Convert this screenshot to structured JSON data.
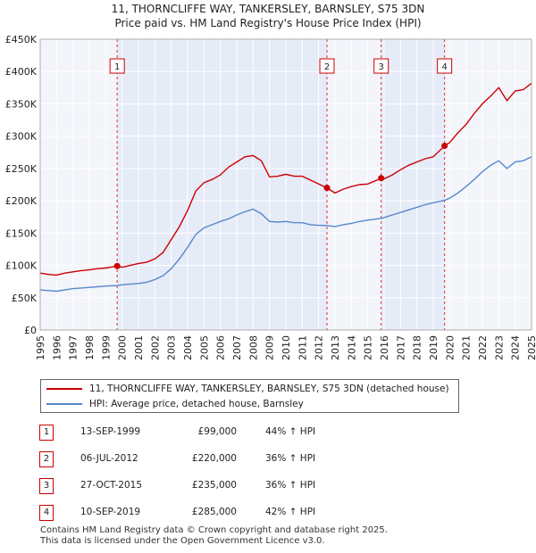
{
  "chart_data": {
    "type": "line",
    "title": "11, THORNCLIFFE WAY, TANKERSLEY, BARNSLEY, S75 3DN",
    "subtitle": "Price paid vs. HM Land Registry's House Price Index (HPI)",
    "xlabel": "",
    "ylabel": "",
    "xlim": [
      1995,
      2025
    ],
    "ylim": [
      0,
      450000
    ],
    "x_ticks": [
      "1995",
      "1996",
      "1997",
      "1998",
      "1999",
      "2000",
      "2001",
      "2002",
      "2003",
      "2004",
      "2005",
      "2006",
      "2007",
      "2008",
      "2009",
      "2010",
      "2011",
      "2012",
      "2013",
      "2014",
      "2015",
      "2016",
      "2017",
      "2018",
      "2019",
      "2020",
      "2021",
      "2022",
      "2023",
      "2024",
      "2025"
    ],
    "y_ticks": [
      {
        "value": 0,
        "label": "£0"
      },
      {
        "value": 50000,
        "label": "£50K"
      },
      {
        "value": 100000,
        "label": "£100K"
      },
      {
        "value": 150000,
        "label": "£150K"
      },
      {
        "value": 200000,
        "label": "£200K"
      },
      {
        "value": 250000,
        "label": "£250K"
      },
      {
        "value": 300000,
        "label": "£300K"
      },
      {
        "value": 350000,
        "label": "£350K"
      },
      {
        "value": 400000,
        "label": "£400K"
      },
      {
        "value": 450000,
        "label": "£450K"
      }
    ],
    "series": [
      {
        "name": "11, THORNCLIFFE WAY, TANKERSLEY, BARNSLEY, S75 3DN (detached house)",
        "color": "#cc0000",
        "points": [
          [
            1995.0,
            88000
          ],
          [
            1995.5,
            86000
          ],
          [
            1996.0,
            85000
          ],
          [
            1996.5,
            88000
          ],
          [
            1997.0,
            90000
          ],
          [
            1997.5,
            92000
          ],
          [
            1998.0,
            93000
          ],
          [
            1998.5,
            95000
          ],
          [
            1999.0,
            96000
          ],
          [
            1999.7,
            99000
          ],
          [
            2000.0,
            97000
          ],
          [
            2000.5,
            100000
          ],
          [
            2001.0,
            103000
          ],
          [
            2001.5,
            105000
          ],
          [
            2002.0,
            110000
          ],
          [
            2002.5,
            120000
          ],
          [
            2003.0,
            140000
          ],
          [
            2003.5,
            160000
          ],
          [
            2004.0,
            185000
          ],
          [
            2004.5,
            215000
          ],
          [
            2005.0,
            228000
          ],
          [
            2005.5,
            233000
          ],
          [
            2006.0,
            240000
          ],
          [
            2006.5,
            252000
          ],
          [
            2007.0,
            260000
          ],
          [
            2007.5,
            268000
          ],
          [
            2008.0,
            270000
          ],
          [
            2008.5,
            262000
          ],
          [
            2009.0,
            237000
          ],
          [
            2009.5,
            238000
          ],
          [
            2010.0,
            241000
          ],
          [
            2010.5,
            238000
          ],
          [
            2011.0,
            238000
          ],
          [
            2011.5,
            232000
          ],
          [
            2012.0,
            226000
          ],
          [
            2012.51,
            220000
          ],
          [
            2013.0,
            212000
          ],
          [
            2013.5,
            218000
          ],
          [
            2014.0,
            222000
          ],
          [
            2014.5,
            225000
          ],
          [
            2015.0,
            226000
          ],
          [
            2015.82,
            235000
          ],
          [
            2016.0,
            234000
          ],
          [
            2016.5,
            240000
          ],
          [
            2017.0,
            248000
          ],
          [
            2017.5,
            255000
          ],
          [
            2018.0,
            260000
          ],
          [
            2018.5,
            265000
          ],
          [
            2019.0,
            268000
          ],
          [
            2019.69,
            285000
          ],
          [
            2020.0,
            290000
          ],
          [
            2020.5,
            305000
          ],
          [
            2021.0,
            318000
          ],
          [
            2021.5,
            335000
          ],
          [
            2022.0,
            350000
          ],
          [
            2022.5,
            362000
          ],
          [
            2023.0,
            375000
          ],
          [
            2023.5,
            355000
          ],
          [
            2024.0,
            370000
          ],
          [
            2024.5,
            372000
          ],
          [
            2025.0,
            382000
          ]
        ]
      },
      {
        "name": "HPI: Average price, detached house, Barnsley",
        "color": "#5588cc",
        "points": [
          [
            1995.0,
            62000
          ],
          [
            1995.5,
            61000
          ],
          [
            1996.0,
            60000
          ],
          [
            1996.5,
            62000
          ],
          [
            1997.0,
            64000
          ],
          [
            1997.5,
            65000
          ],
          [
            1998.0,
            66000
          ],
          [
            1998.5,
            67000
          ],
          [
            1999.0,
            68000
          ],
          [
            1999.7,
            68800
          ],
          [
            2000.0,
            70000
          ],
          [
            2000.5,
            71000
          ],
          [
            2001.0,
            72000
          ],
          [
            2001.5,
            74000
          ],
          [
            2002.0,
            78000
          ],
          [
            2002.5,
            84000
          ],
          [
            2003.0,
            95000
          ],
          [
            2003.5,
            110000
          ],
          [
            2004.0,
            128000
          ],
          [
            2004.5,
            148000
          ],
          [
            2005.0,
            158000
          ],
          [
            2005.5,
            163000
          ],
          [
            2006.0,
            168000
          ],
          [
            2006.5,
            172000
          ],
          [
            2007.0,
            178000
          ],
          [
            2007.5,
            183000
          ],
          [
            2008.0,
            187000
          ],
          [
            2008.5,
            180000
          ],
          [
            2009.0,
            168000
          ],
          [
            2009.5,
            167000
          ],
          [
            2010.0,
            168000
          ],
          [
            2010.5,
            166000
          ],
          [
            2011.0,
            166000
          ],
          [
            2011.5,
            163000
          ],
          [
            2012.0,
            162000
          ],
          [
            2012.51,
            161800
          ],
          [
            2013.0,
            160000
          ],
          [
            2013.5,
            163000
          ],
          [
            2014.0,
            165000
          ],
          [
            2014.5,
            168000
          ],
          [
            2015.0,
            170000
          ],
          [
            2015.82,
            172800
          ],
          [
            2016.0,
            174000
          ],
          [
            2016.5,
            178000
          ],
          [
            2017.0,
            182000
          ],
          [
            2017.5,
            186000
          ],
          [
            2018.0,
            190000
          ],
          [
            2018.5,
            194000
          ],
          [
            2019.0,
            197000
          ],
          [
            2019.69,
            200700
          ],
          [
            2020.0,
            204000
          ],
          [
            2020.5,
            212000
          ],
          [
            2021.0,
            222000
          ],
          [
            2021.5,
            233000
          ],
          [
            2022.0,
            245000
          ],
          [
            2022.5,
            255000
          ],
          [
            2023.0,
            262000
          ],
          [
            2023.5,
            250000
          ],
          [
            2024.0,
            260000
          ],
          [
            2024.5,
            262000
          ],
          [
            2025.0,
            268000
          ]
        ]
      }
    ],
    "sales": [
      {
        "num": "1",
        "date": "13-SEP-1999",
        "price": "£99,000",
        "hpi": "44% ↑ HPI",
        "x": 1999.7,
        "value": 99000
      },
      {
        "num": "2",
        "date": "06-JUL-2012",
        "price": "£220,000",
        "hpi": "36% ↑ HPI",
        "x": 2012.51,
        "value": 220000
      },
      {
        "num": "3",
        "date": "27-OCT-2015",
        "price": "£235,000",
        "hpi": "36% ↑ HPI",
        "x": 2015.82,
        "value": 235000
      },
      {
        "num": "4",
        "date": "10-SEP-2019",
        "price": "£285,000",
        "hpi": "42% ↑ HPI",
        "x": 2019.69,
        "value": 285000
      }
    ],
    "annotations": [
      "1",
      "2",
      "3",
      "4"
    ],
    "grid": true,
    "legend": "below"
  },
  "footer": {
    "line1": "Contains HM Land Registry data © Crown copyright and database right 2025.",
    "line2": "This data is licensed under the Open Government Licence v3.0."
  }
}
